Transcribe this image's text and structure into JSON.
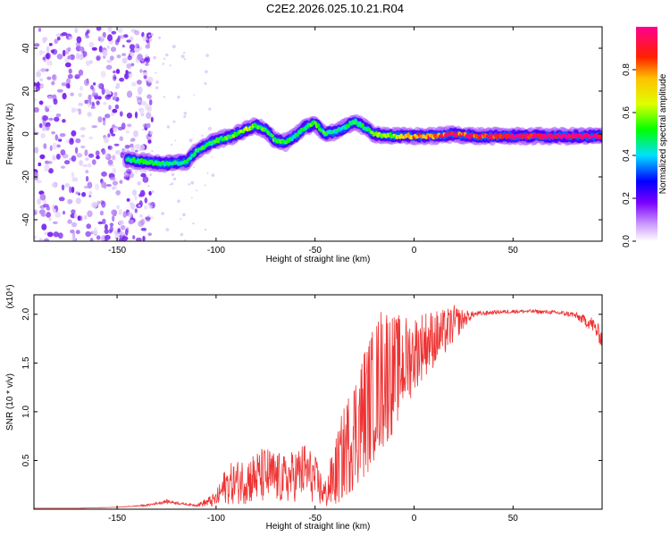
{
  "title": "C2E2.2026.025.10.21.R04",
  "chart_data": [
    {
      "type": "heatmap",
      "name": "spectrogram",
      "xlabel": "Height of straight line (km)",
      "ylabel": "Frequency (Hz)",
      "xlim": [
        -192,
        95
      ],
      "ylim": [
        -50,
        50
      ],
      "xticks": [
        -150,
        -100,
        -50,
        0,
        50
      ],
      "yticks": [
        -40,
        -20,
        0,
        20,
        40
      ],
      "colorbar": {
        "label": "Normalized spectral amplitude",
        "range": [
          0,
          1
        ],
        "ticks": [
          0.0,
          0.2,
          0.4,
          0.6,
          0.8
        ],
        "tick_labels": [
          "0.0",
          "0.2",
          "0.4",
          "0.6",
          "0.8"
        ]
      },
      "ridge": {
        "x": [
          -145,
          -135,
          -125,
          -115,
          -110,
          -100,
          -92,
          -85,
          -80,
          -75,
          -70,
          -65,
          -60,
          -55,
          -50,
          -45,
          -40,
          -35,
          -30,
          -25,
          -20,
          -10,
          0,
          10,
          20,
          30,
          50,
          70,
          95
        ],
        "y": [
          -12,
          -13,
          -14,
          -13,
          -8,
          -3,
          -1,
          2,
          4,
          2,
          -3,
          -4,
          -1,
          3,
          5,
          0,
          1,
          3,
          6,
          3,
          0,
          -1,
          -1,
          -1,
          0,
          -1,
          -1,
          -1,
          -1
        ],
        "amplitude": [
          0.45,
          0.5,
          0.45,
          0.45,
          0.5,
          0.5,
          0.55,
          0.6,
          0.55,
          0.5,
          0.55,
          0.5,
          0.45,
          0.5,
          0.55,
          0.5,
          0.45,
          0.45,
          0.5,
          0.5,
          0.55,
          0.6,
          0.75,
          0.85,
          0.9,
          0.9,
          0.95,
          1.0,
          1.0
        ]
      },
      "noise_region_x": [
        -192,
        -140
      ]
    },
    {
      "type": "line",
      "name": "snr",
      "xlabel": "Height of straight line (km)",
      "ylabel": "SNR (10 * v/v)",
      "scale_note": "(x10⁴)",
      "color": "#ee3333",
      "xlim": [
        -192,
        95
      ],
      "ylim": [
        0,
        2.2
      ],
      "xticks": [
        -150,
        -100,
        -50,
        0,
        50
      ],
      "yticks": [
        0.5,
        1.0,
        1.5,
        2.0
      ],
      "ytick_labels": [
        "0.5",
        "1.0",
        "1.5",
        "2.0"
      ],
      "x": [
        -192,
        -170,
        -150,
        -135,
        -125,
        -115,
        -110,
        -100,
        -95,
        -85,
        -75,
        -65,
        -55,
        -50,
        -45,
        -40,
        -35,
        -30,
        -25,
        -20,
        -15,
        -10,
        -5,
        0,
        5,
        10,
        15,
        20,
        25,
        30,
        40,
        50,
        60,
        70,
        80,
        85,
        90,
        95
      ],
      "y": [
        0.01,
        0.01,
        0.02,
        0.04,
        0.08,
        0.05,
        0.04,
        0.1,
        0.25,
        0.3,
        0.35,
        0.3,
        0.4,
        0.3,
        0.15,
        0.35,
        0.6,
        0.8,
        1.0,
        1.2,
        1.4,
        1.4,
        1.5,
        1.6,
        1.7,
        1.75,
        1.8,
        1.9,
        1.95,
        2.0,
        2.02,
        2.03,
        2.03,
        2.02,
        2.0,
        1.95,
        1.9,
        1.75
      ],
      "noise_scale": [
        0.0,
        0.0,
        0.0,
        0.01,
        0.02,
        0.01,
        0.01,
        0.08,
        0.2,
        0.25,
        0.3,
        0.25,
        0.3,
        0.25,
        0.15,
        0.35,
        0.5,
        0.6,
        0.7,
        0.7,
        0.8,
        0.6,
        0.5,
        0.4,
        0.35,
        0.3,
        0.25,
        0.2,
        0.1,
        0.03,
        0.02,
        0.02,
        0.02,
        0.02,
        0.03,
        0.05,
        0.08,
        0.1
      ]
    }
  ]
}
